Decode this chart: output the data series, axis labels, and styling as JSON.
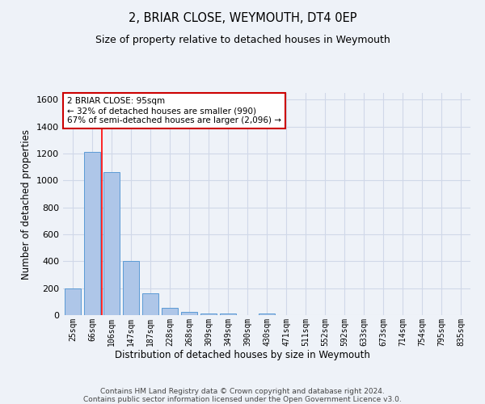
{
  "title1": "2, BRIAR CLOSE, WEYMOUTH, DT4 0EP",
  "title2": "Size of property relative to detached houses in Weymouth",
  "xlabel": "Distribution of detached houses by size in Weymouth",
  "ylabel": "Number of detached properties",
  "bar_labels": [
    "25sqm",
    "66sqm",
    "106sqm",
    "147sqm",
    "187sqm",
    "228sqm",
    "268sqm",
    "309sqm",
    "349sqm",
    "390sqm",
    "430sqm",
    "471sqm",
    "511sqm",
    "552sqm",
    "592sqm",
    "633sqm",
    "673sqm",
    "714sqm",
    "754sqm",
    "795sqm",
    "835sqm"
  ],
  "bar_values": [
    200,
    1215,
    1065,
    405,
    165,
    55,
    25,
    15,
    15,
    0,
    15,
    0,
    0,
    0,
    0,
    0,
    0,
    0,
    0,
    0,
    0
  ],
  "bar_color": "#aec6e8",
  "bar_edge_color": "#5b9bd5",
  "grid_color": "#d0d8e8",
  "background_color": "#eef2f8",
  "red_line_index": 2,
  "annotation_text": "2 BRIAR CLOSE: 95sqm\n← 32% of detached houses are smaller (990)\n67% of semi-detached houses are larger (2,096) →",
  "annotation_box_color": "#ffffff",
  "annotation_border_color": "#cc0000",
  "ylim": [
    0,
    1650
  ],
  "yticks": [
    0,
    200,
    400,
    600,
    800,
    1000,
    1200,
    1400,
    1600
  ],
  "footnote": "Contains HM Land Registry data © Crown copyright and database right 2024.\nContains public sector information licensed under the Open Government Licence v3.0."
}
